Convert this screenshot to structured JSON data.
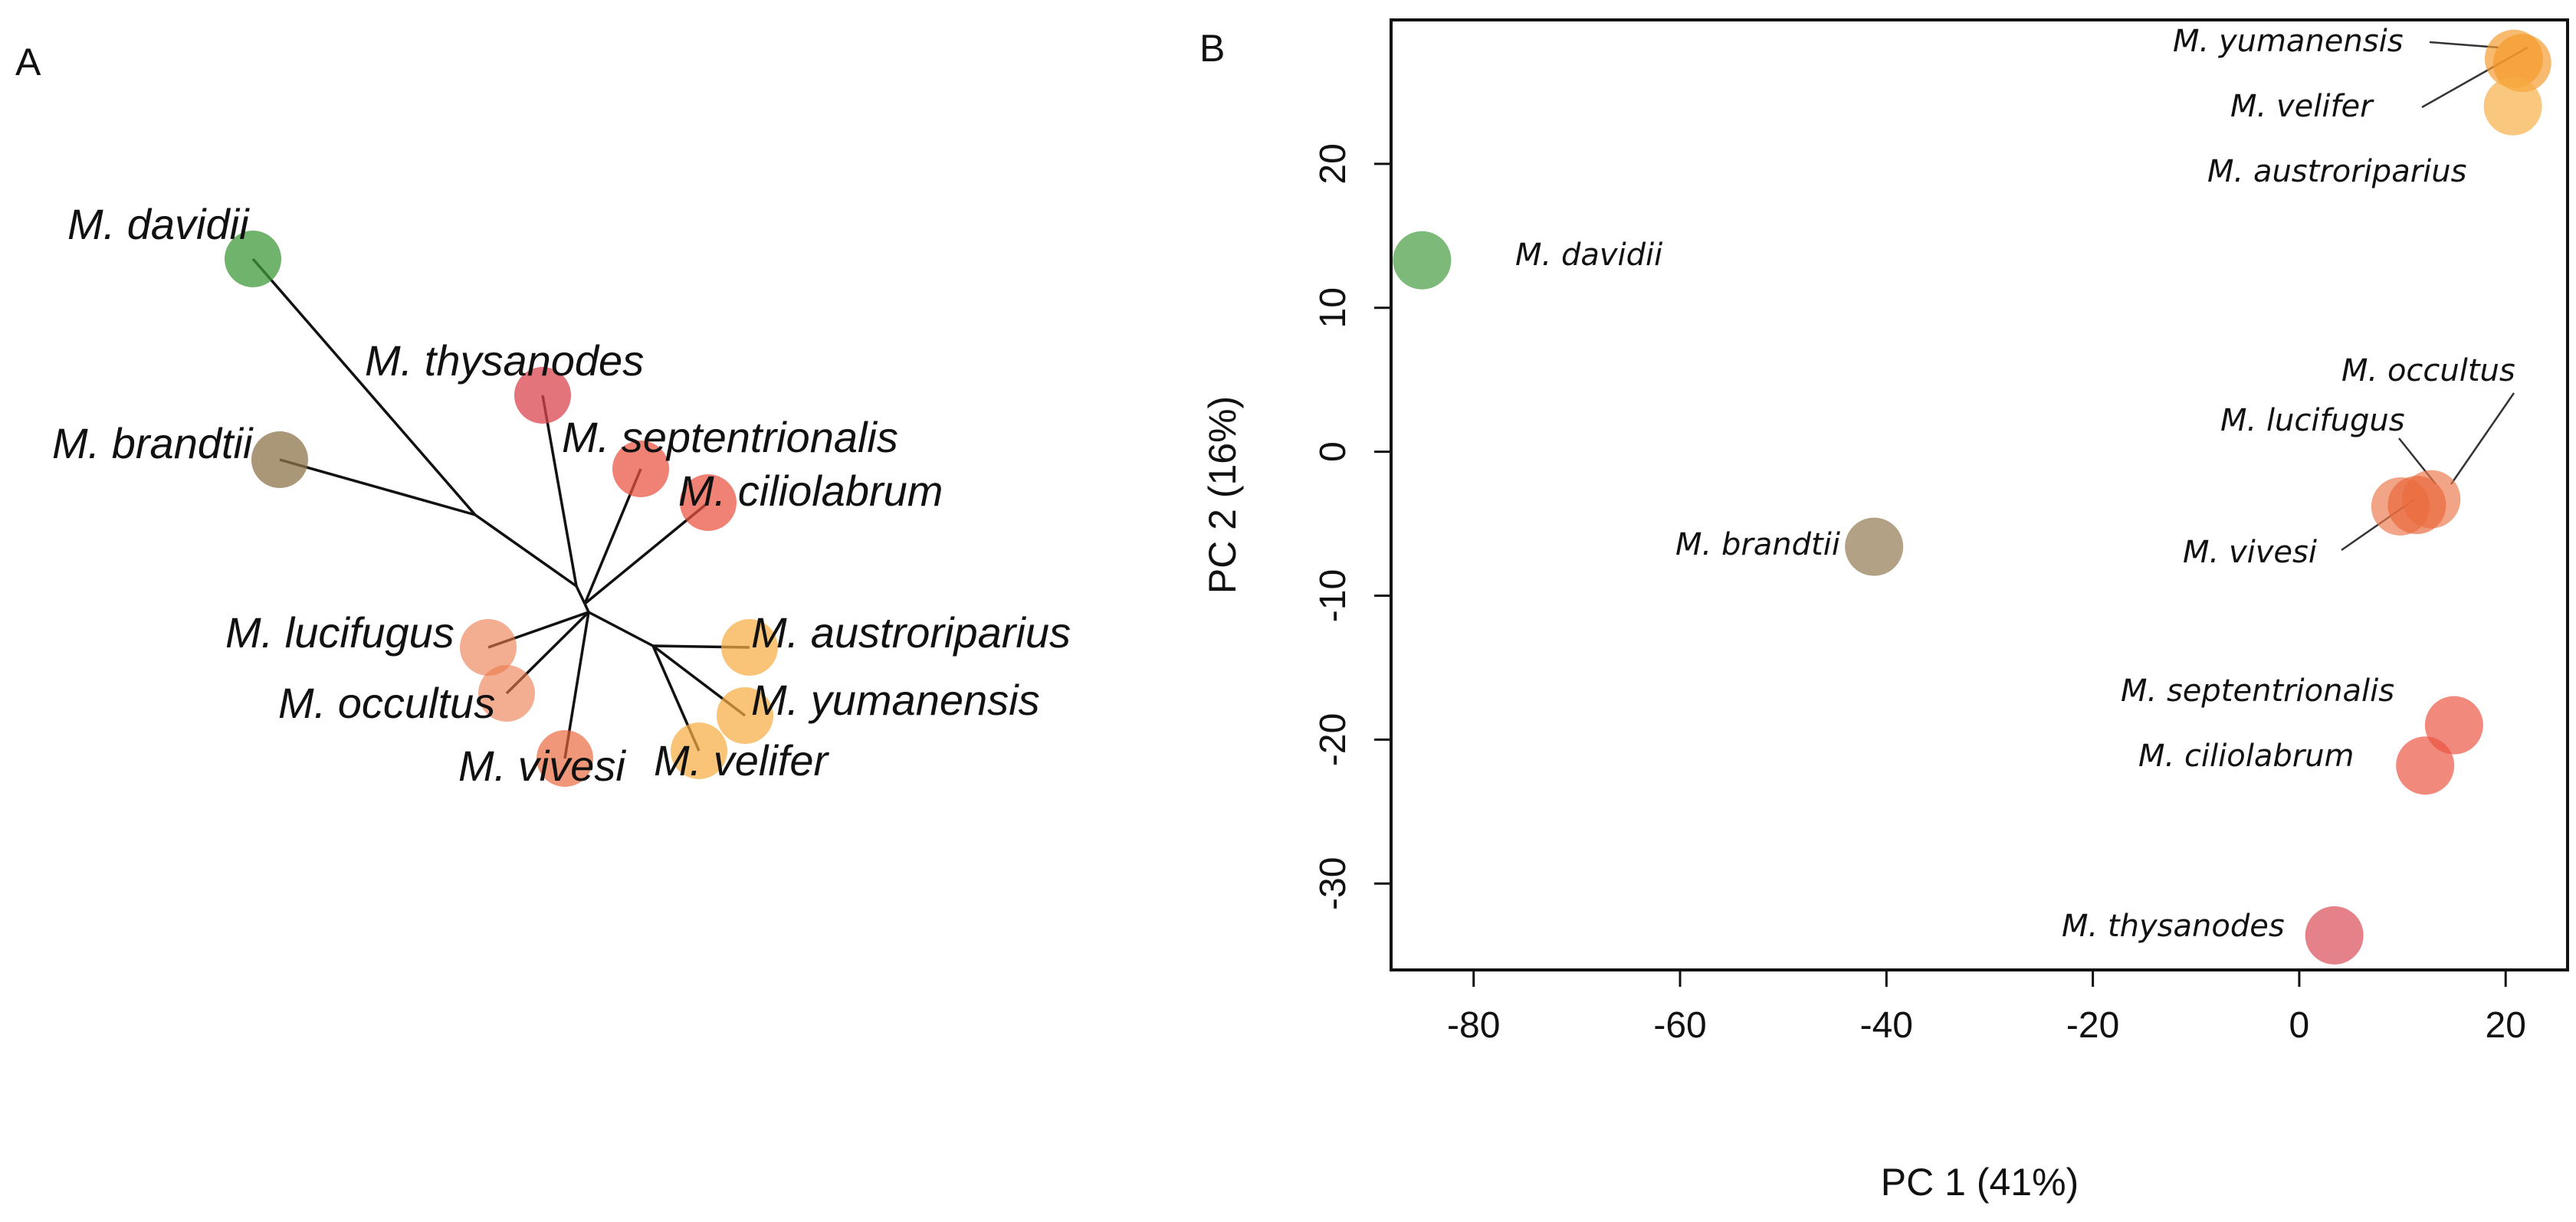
{
  "colors": {
    "green": "#3f9a3b",
    "brown": "#8e7449",
    "red_dark": "#d94650",
    "red": "#ea5240",
    "orange_red": "#e9653a",
    "orange": "#ec7b4c",
    "amber": "#f59a2b",
    "yellow": "#f7ad43",
    "edge": "#111111"
  },
  "panel_a": {
    "label": "A",
    "tree_leaves": [
      {
        "species": "M. davidii",
        "color": "#3f9a3b"
      },
      {
        "species": "M. brandtii",
        "color": "#8e7449"
      },
      {
        "species": "M. thysanodes",
        "color": "#d94650"
      },
      {
        "species": "M. septentrionalis",
        "color": "#ea5240"
      },
      {
        "species": "M. ciliolabrum",
        "color": "#ea5240"
      },
      {
        "species": "M. lucifugus",
        "color": "#ec7b4c"
      },
      {
        "species": "M. occultus",
        "color": "#ec7b4c"
      },
      {
        "species": "M. vivesi",
        "color": "#e9653a"
      },
      {
        "species": "M. velifer",
        "color": "#f7ad43"
      },
      {
        "species": "M. austroriparius",
        "color": "#f7ad43"
      },
      {
        "species": "M. yumanensis",
        "color": "#f7ad43"
      }
    ]
  },
  "panel_b": {
    "label": "B",
    "chart_data": {
      "type": "scatter",
      "title": "",
      "xlabel": "PC 1 (41%)",
      "ylabel": "PC 2 (16%)",
      "xlim": [
        -88,
        26
      ],
      "ylim": [
        -36,
        30
      ],
      "xticks": [
        -80,
        -60,
        -40,
        -20,
        0,
        20
      ],
      "yticks": [
        -30,
        -20,
        -10,
        0,
        10,
        20
      ],
      "grid": false,
      "series": [
        {
          "name": "M. davidii",
          "x": -85.0,
          "y": 13.3,
          "color": "#3f9a3b"
        },
        {
          "name": "M. brandtii",
          "x": -41.2,
          "y": -6.6,
          "color": "#8e7449"
        },
        {
          "name": "M. yumanensis",
          "x": 20.8,
          "y": 27.3,
          "color": "#f59a2b"
        },
        {
          "name": "M. velifer",
          "x": 21.6,
          "y": 27.0,
          "color": "#f59a2b"
        },
        {
          "name": "M. austroriparius",
          "x": 20.7,
          "y": 24.0,
          "color": "#f7ad43"
        },
        {
          "name": "M. occultus",
          "x": 12.8,
          "y": -3.3,
          "color": "#ec7b4c"
        },
        {
          "name": "M. lucifugus",
          "x": 9.8,
          "y": -3.8,
          "color": "#ec7b4c"
        },
        {
          "name": "M. vivesi",
          "x": 11.4,
          "y": -3.7,
          "color": "#e9653a"
        },
        {
          "name": "M. septentrionalis",
          "x": 15.0,
          "y": -19.0,
          "color": "#ea5240"
        },
        {
          "name": "M. ciliolabrum",
          "x": 12.2,
          "y": -21.8,
          "color": "#ea5240"
        },
        {
          "name": "M. thysanodes",
          "x": 3.4,
          "y": -33.6,
          "color": "#d94650"
        }
      ]
    }
  }
}
